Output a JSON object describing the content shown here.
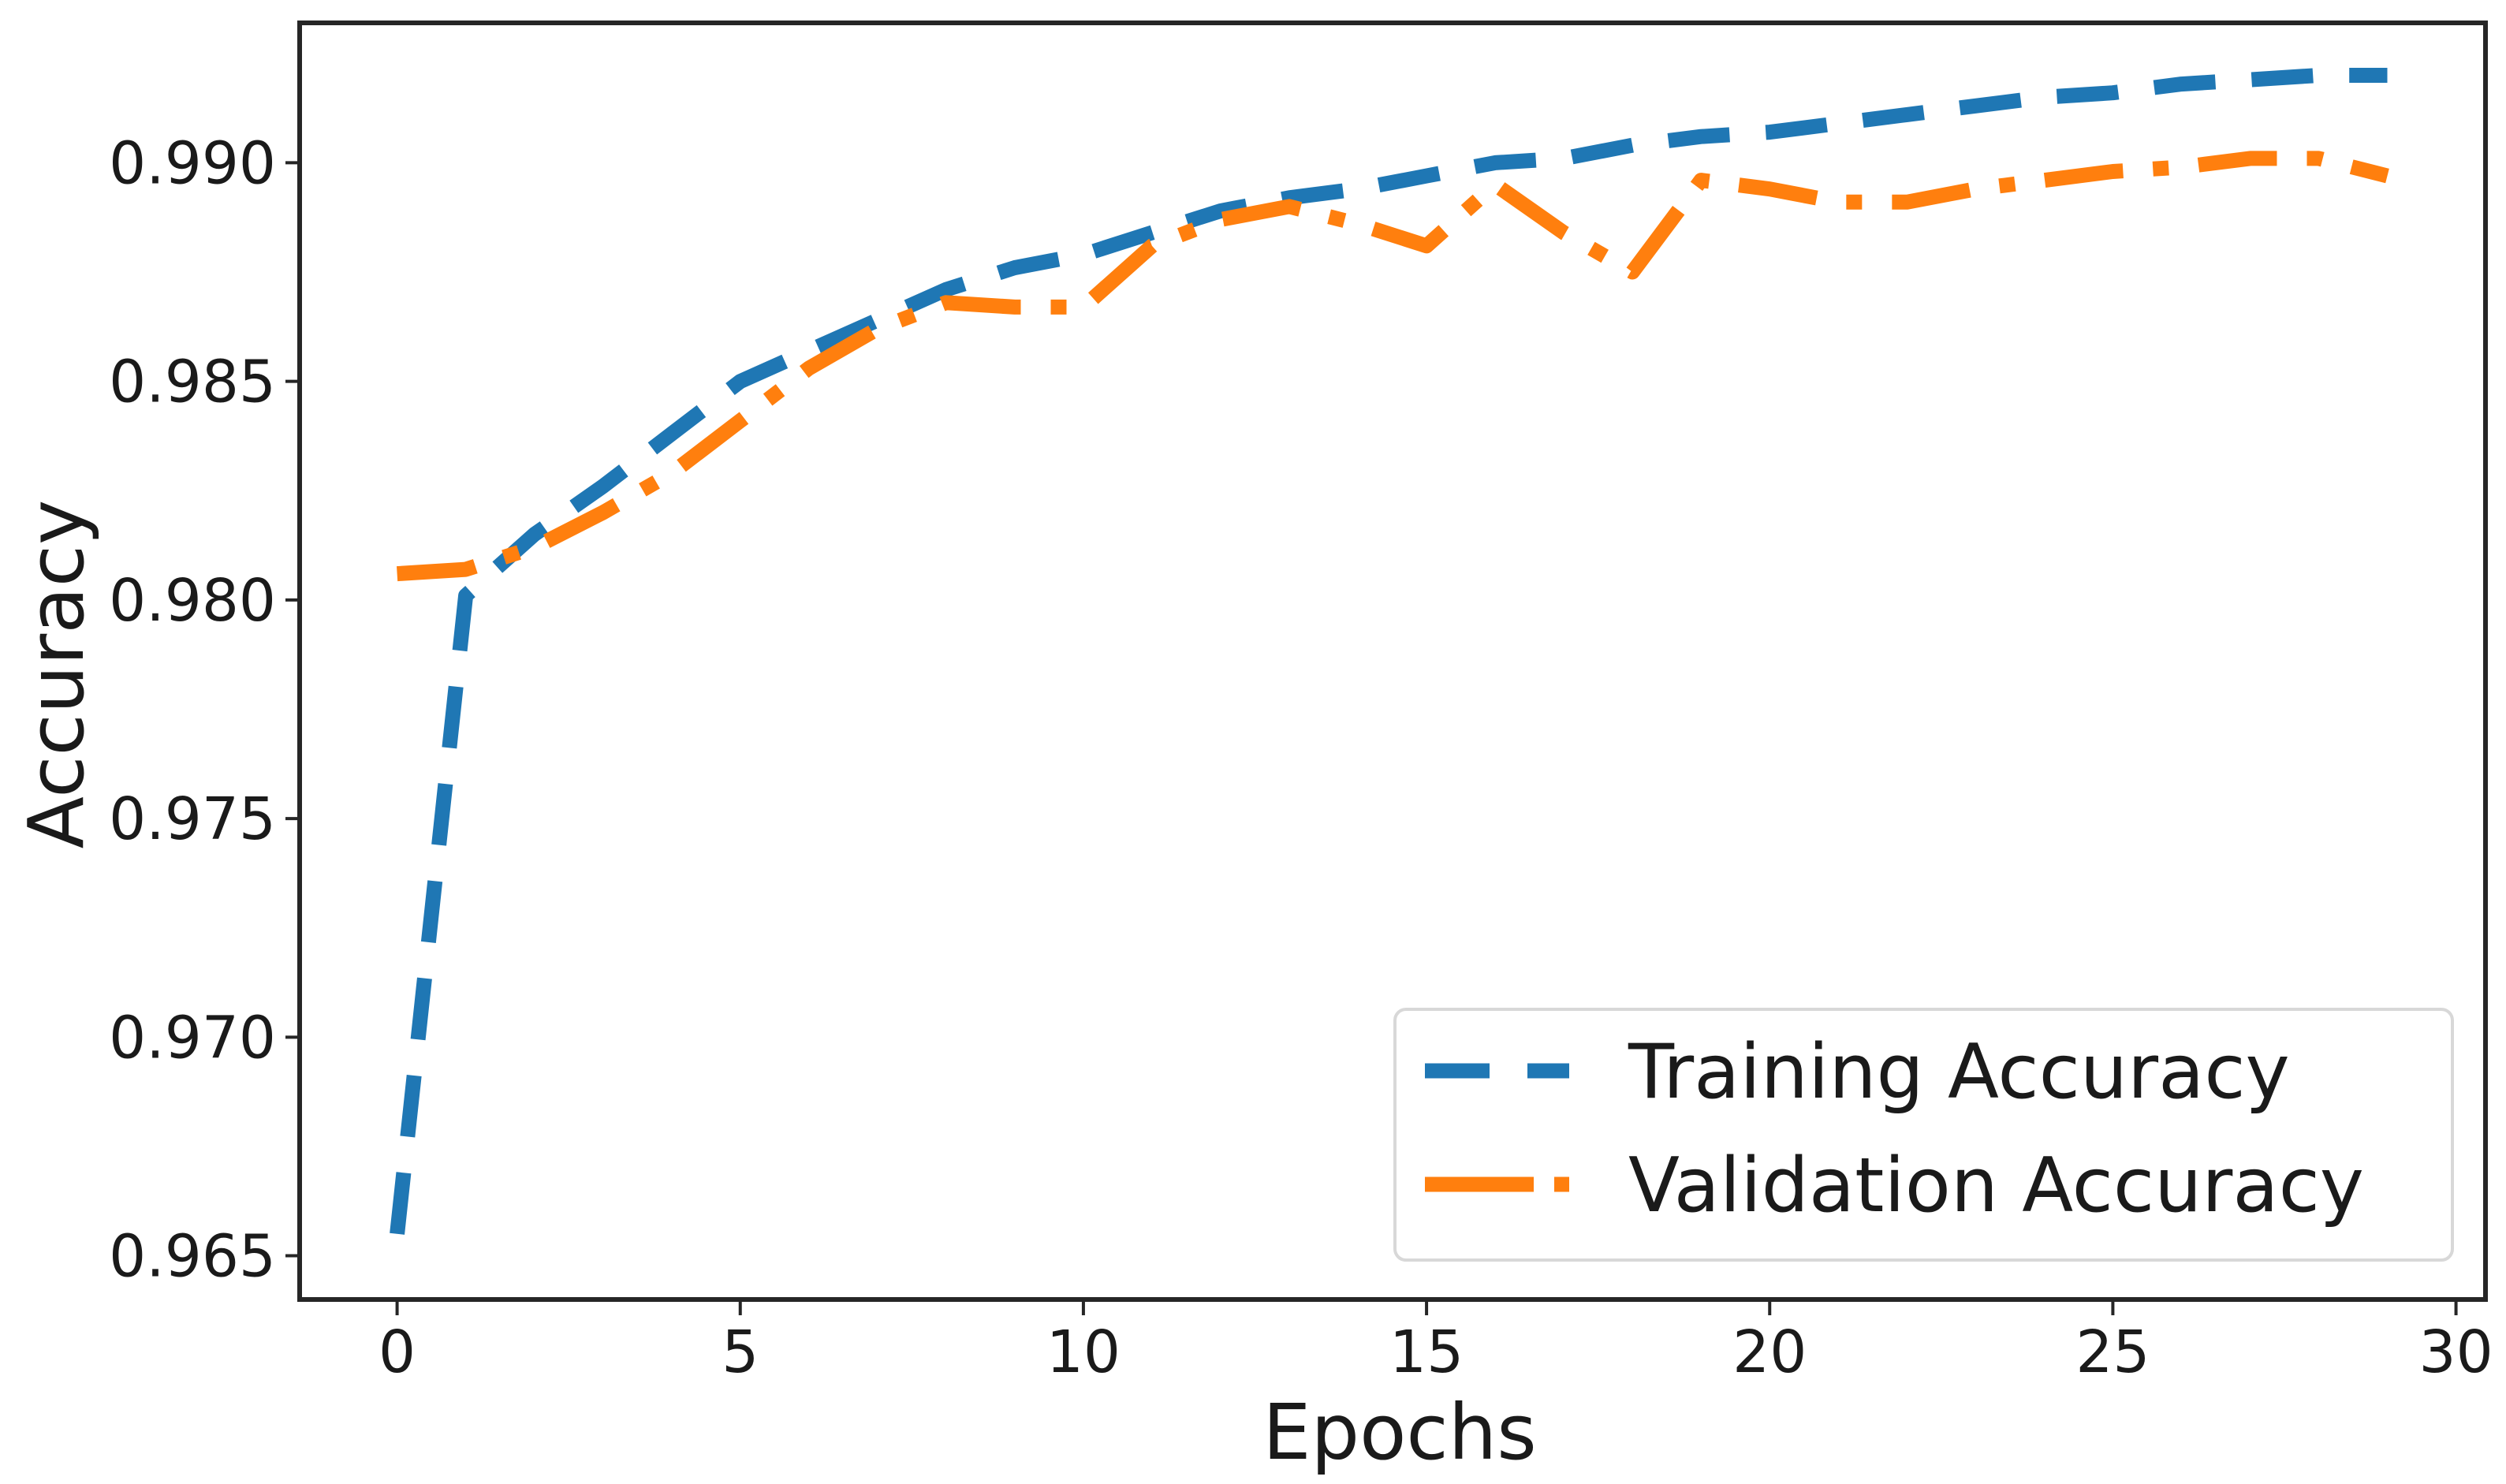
{
  "chart_data": {
    "type": "line",
    "title": "",
    "xlabel": "Epochs",
    "ylabel": "Accuracy",
    "x": [
      0,
      1,
      2,
      3,
      4,
      5,
      6,
      7,
      8,
      9,
      10,
      11,
      12,
      13,
      14,
      15,
      16,
      17,
      18,
      19,
      20,
      21,
      22,
      23,
      24,
      25,
      26,
      27,
      28,
      29
    ],
    "series": [
      {
        "name": "Training Accuracy",
        "color": "#1f77b4",
        "style": "dashed",
        "values": [
          0.9655,
          0.9801,
          0.9815,
          0.9826,
          0.9838,
          0.985,
          0.9857,
          0.9864,
          0.9871,
          0.9876,
          0.9879,
          0.9884,
          0.9889,
          0.9892,
          0.9894,
          0.9897,
          0.99,
          0.9901,
          0.9904,
          0.9906,
          0.9907,
          0.9909,
          0.9911,
          0.9913,
          0.9915,
          0.9916,
          0.9918,
          0.9919,
          0.992,
          0.992
        ]
      },
      {
        "name": "Validation Accuracy",
        "color": "#ff7f0e",
        "style": "dashdot",
        "values": [
          0.9806,
          0.9807,
          0.9812,
          0.982,
          0.9829,
          0.9841,
          0.9853,
          0.9862,
          0.9868,
          0.9867,
          0.9867,
          0.9881,
          0.9887,
          0.989,
          0.9886,
          0.9881,
          0.9895,
          0.9884,
          0.9875,
          0.9896,
          0.9894,
          0.9891,
          0.9891,
          0.9894,
          0.9896,
          0.9898,
          0.9899,
          0.9901,
          0.9901,
          0.9897
        ]
      }
    ],
    "xlim": [
      -1.42,
      30.43
    ],
    "ylim": [
      0.964,
      0.9932
    ],
    "xticks": {
      "values": [
        0,
        5,
        10,
        15,
        20,
        25,
        30
      ],
      "labels": [
        "0",
        "5",
        "10",
        "15",
        "20",
        "25",
        "30"
      ]
    },
    "yticks": {
      "values": [
        0.965,
        0.97,
        0.975,
        0.98,
        0.985,
        0.99
      ],
      "labels": [
        "0.965",
        "0.970",
        "0.975",
        "0.980",
        "0.985",
        "0.990"
      ]
    },
    "grid": false,
    "legend_position": "lower right"
  },
  "legend": {
    "items": [
      {
        "label": "Training Accuracy"
      },
      {
        "label": "Validation Accuracy"
      }
    ]
  },
  "colors": {
    "training": "#1f77b4",
    "validation": "#ff7f0e",
    "text": "#1a1a1a",
    "spine": "#262626",
    "legend_border": "#d8d8d8",
    "background": "#ffffff"
  }
}
